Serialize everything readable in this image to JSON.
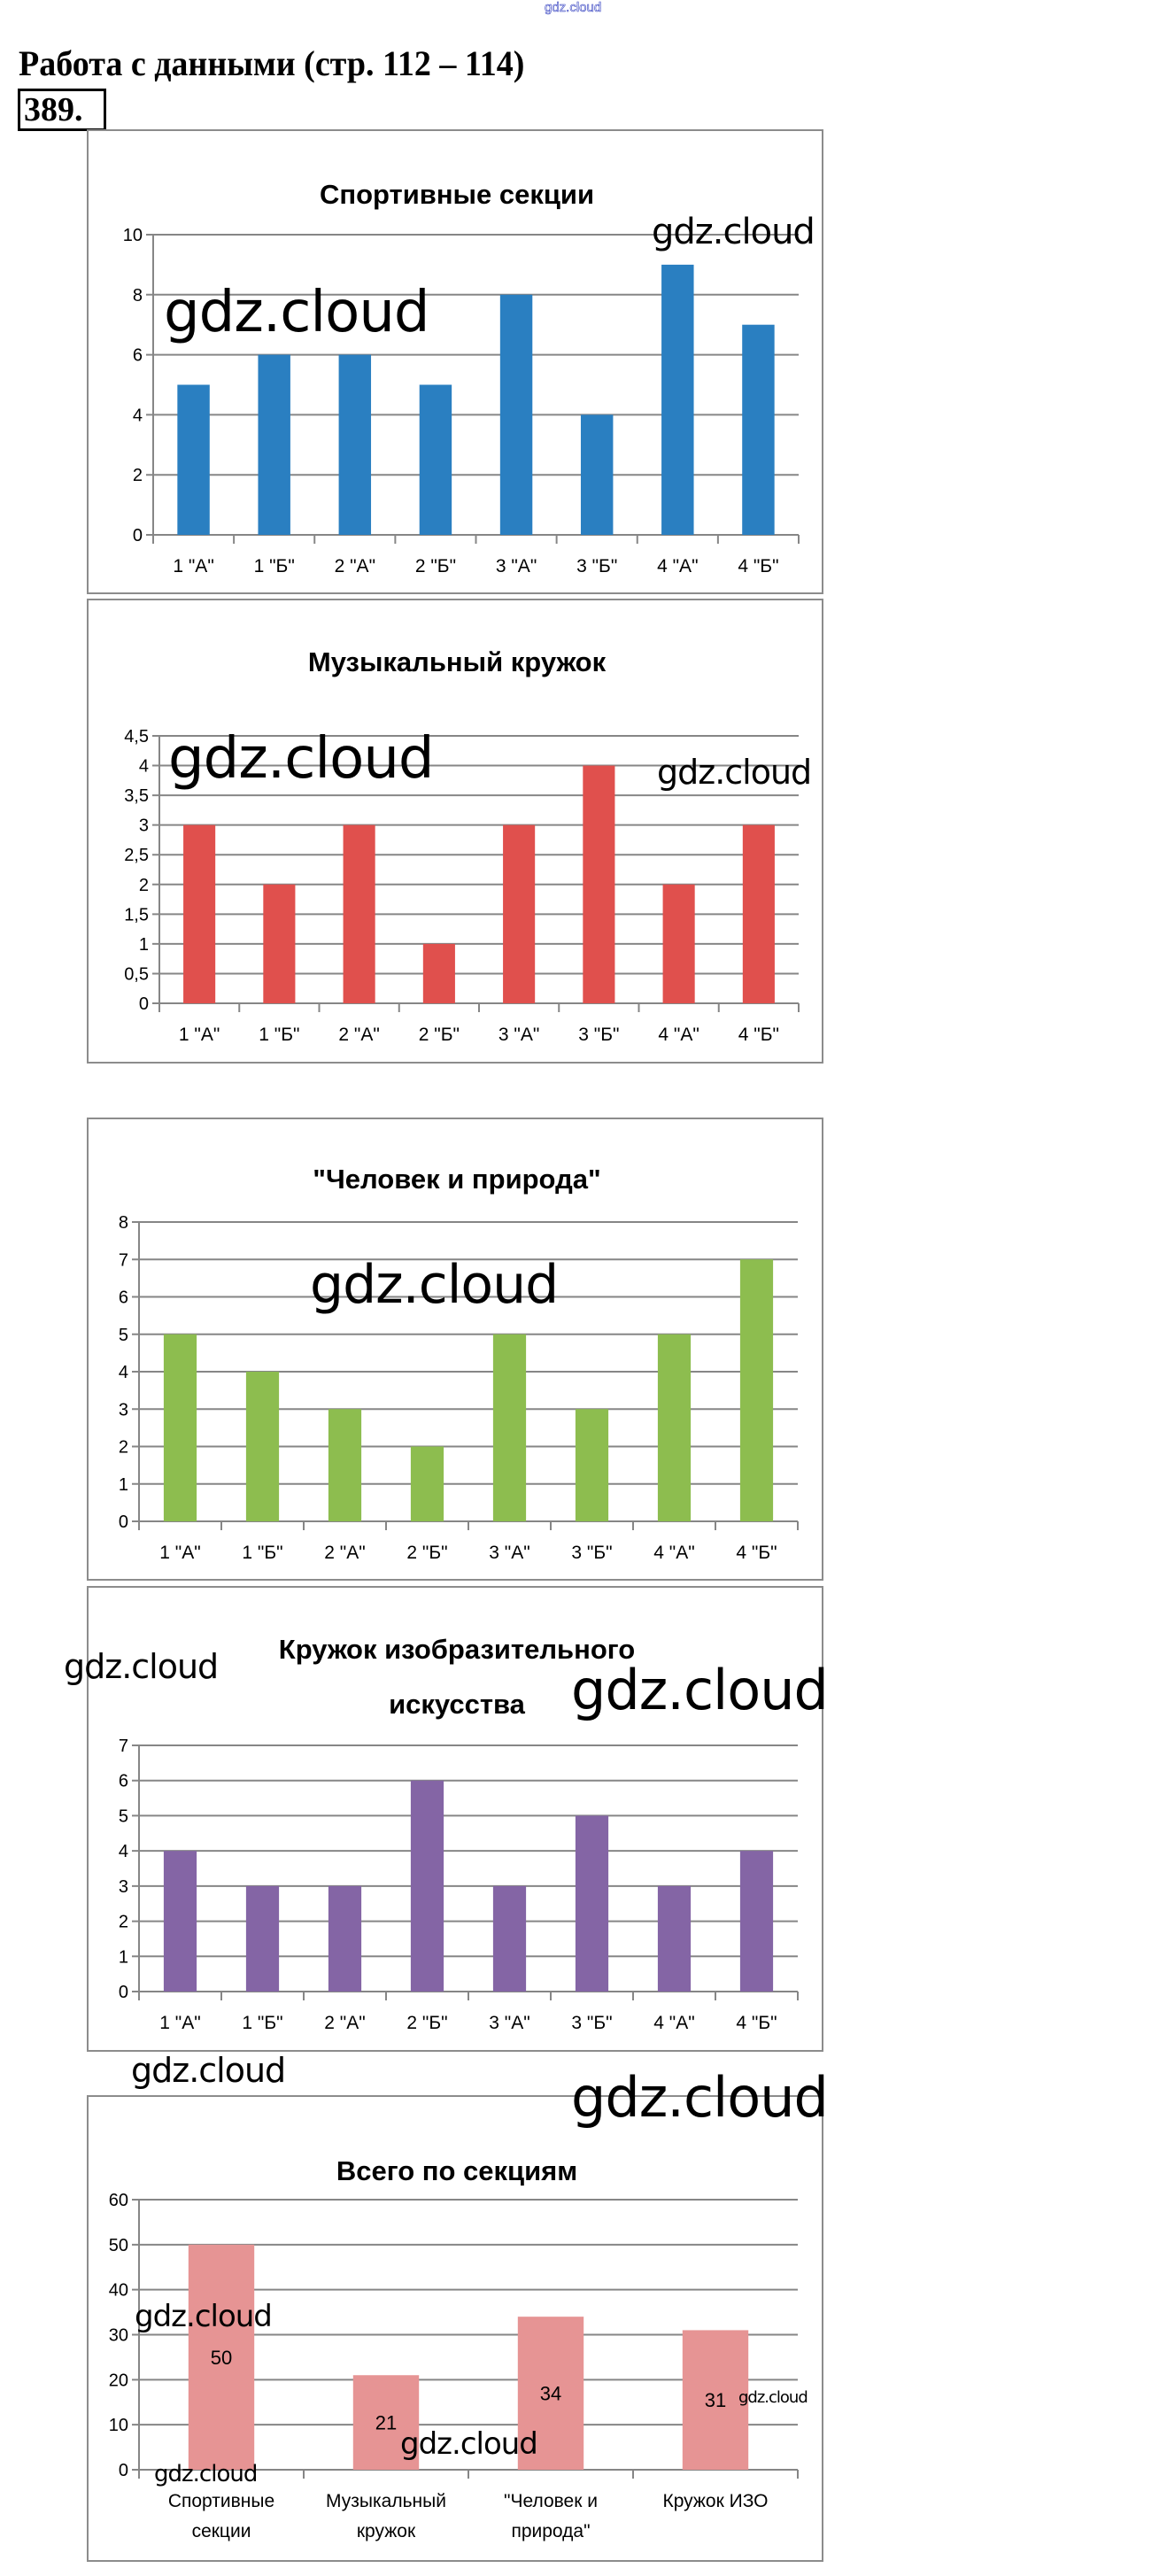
{
  "header": {
    "title": "Работа с данными (стр. 112 – 114)",
    "exercise_number": "389."
  },
  "watermark": "gdz.cloud",
  "chart_data": [
    {
      "type": "bar",
      "title": "Спортивные секции",
      "categories": [
        "1 \"А\"",
        "1 \"Б\"",
        "2 \"А\"",
        "2 \"Б\"",
        "3 \"А\"",
        "3 \"Б\"",
        "4 \"А\"",
        "4 \"Б\""
      ],
      "values": [
        5,
        6,
        6,
        5,
        8,
        4,
        9,
        7
      ],
      "ylim": [
        0,
        10
      ],
      "yticks": [
        "0",
        "2",
        "4",
        "6",
        "8",
        "10"
      ],
      "color": "#2a7fc1",
      "grid": true,
      "xlabel": "",
      "ylabel": ""
    },
    {
      "type": "bar",
      "title": "Музыкальный кружок",
      "categories": [
        "1 \"А\"",
        "1 \"Б\"",
        "2 \"А\"",
        "2 \"Б\"",
        "3 \"А\"",
        "3 \"Б\"",
        "4 \"А\"",
        "4 \"Б\""
      ],
      "values": [
        3,
        2,
        3,
        1,
        3,
        4,
        2,
        3
      ],
      "ylim": [
        0,
        4.5
      ],
      "yticks": [
        "0",
        "0,5",
        "1",
        "1,5",
        "2",
        "2,5",
        "3",
        "3,5",
        "4",
        "4,5"
      ],
      "color": "#e0504d",
      "grid": true,
      "xlabel": "",
      "ylabel": ""
    },
    {
      "type": "bar",
      "title": "\"Человек и природа\"",
      "categories": [
        "1 \"А\"",
        "1 \"Б\"",
        "2 \"А\"",
        "2 \"Б\"",
        "3 \"А\"",
        "3 \"Б\"",
        "4 \"А\"",
        "4 \"Б\""
      ],
      "values": [
        5,
        4,
        3,
        2,
        5,
        3,
        5,
        7
      ],
      "ylim": [
        0,
        8
      ],
      "yticks": [
        "0",
        "1",
        "2",
        "3",
        "4",
        "5",
        "6",
        "7",
        "8"
      ],
      "color": "#8dbd4f",
      "grid": true,
      "xlabel": "",
      "ylabel": ""
    },
    {
      "type": "bar",
      "title": [
        "Кружок изобразительного",
        "искусства"
      ],
      "categories": [
        "1 \"А\"",
        "1 \"Б\"",
        "2 \"А\"",
        "2 \"Б\"",
        "3 \"А\"",
        "3 \"Б\"",
        "4 \"А\"",
        "4 \"Б\""
      ],
      "values": [
        4,
        3,
        3,
        6,
        3,
        5,
        3,
        4
      ],
      "ylim": [
        0,
        7
      ],
      "yticks": [
        "0",
        "1",
        "2",
        "3",
        "4",
        "5",
        "6",
        "7"
      ],
      "color": "#8465a5",
      "grid": true,
      "xlabel": "",
      "ylabel": ""
    },
    {
      "type": "bar",
      "title": "Всего по секциям",
      "categories": [
        [
          "Спортивные",
          "секции"
        ],
        [
          "Музыкальный",
          "кружок"
        ],
        [
          "\"Человек и",
          "природа\""
        ],
        [
          "Кружок ИЗО"
        ]
      ],
      "values": [
        50,
        21,
        34,
        31
      ],
      "data_labels": [
        "50",
        "21",
        "34",
        "31"
      ],
      "ylim": [
        0,
        60
      ],
      "yticks": [
        "0",
        "10",
        "20",
        "30",
        "40",
        "50",
        "60"
      ],
      "color": "#e69494",
      "grid": true,
      "xlabel": "",
      "ylabel": ""
    }
  ]
}
